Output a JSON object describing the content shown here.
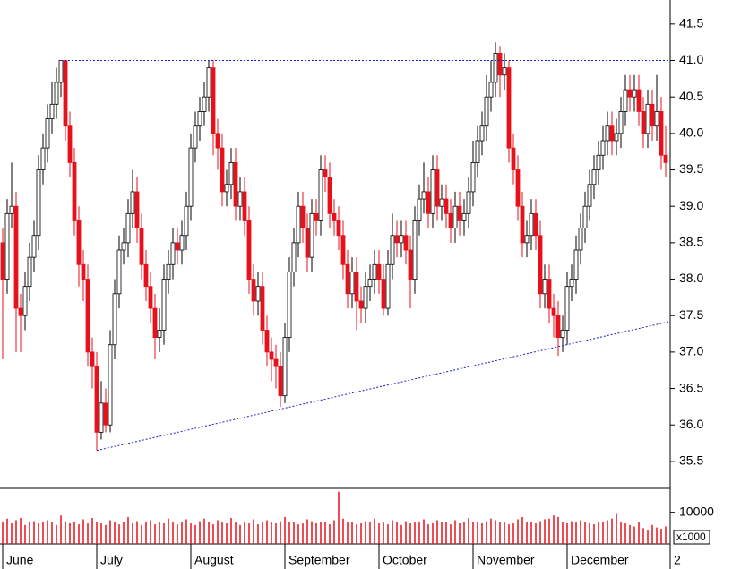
{
  "chart_data": {
    "type": "candlestick",
    "xlim": [
      -0.6,
      149
    ],
    "xticks": [
      {
        "value": 0,
        "label": "June"
      },
      {
        "value": 21,
        "label": "July"
      },
      {
        "value": 42,
        "label": "August"
      },
      {
        "value": 63,
        "label": "September"
      },
      {
        "value": 84,
        "label": "October"
      },
      {
        "value": 105,
        "label": "November"
      },
      {
        "value": 126,
        "label": "December"
      },
      {
        "value": 149,
        "label": "2"
      }
    ],
    "ylim": [
      35.13,
      41.83
    ],
    "yticks": [
      35.5,
      {
        "value": 36,
        "label": "36.0"
      },
      36.5,
      {
        "value": 37,
        "label": "37.0"
      },
      37.5,
      {
        "value": 38,
        "label": "38.0"
      },
      38.5,
      {
        "value": 39,
        "label": "39.0"
      },
      39.5,
      {
        "value": 40,
        "label": "40.0"
      },
      40.5,
      {
        "value": 41,
        "label": "41.0"
      },
      41.5
    ],
    "up_color": "#ffffff",
    "down_color": "#e8101a",
    "open": [
      38.5,
      38.0,
      38.9,
      39.0,
      37.6,
      37.5,
      37.9,
      38.3,
      38.6,
      39.5,
      39.8,
      40.2,
      40.4,
      40.7,
      41.0,
      40.1,
      39.6,
      38.8,
      38.2,
      38.0,
      37.0,
      36.8,
      35.9,
      36.3,
      36.0,
      37.1,
      37.8,
      38.4,
      38.5,
      38.9,
      39.2,
      38.7,
      38.2,
      37.9,
      37.6,
      37.2,
      37.3,
      38.0,
      38.2,
      38.5,
      38.4,
      38.6,
      39.0,
      39.8,
      40.1,
      40.3,
      40.5,
      40.9,
      40.0,
      39.8,
      39.2,
      39.3,
      39.6,
      39.0,
      39.2,
      38.8,
      38.0,
      37.7,
      37.9,
      37.3,
      37.0,
      36.9,
      36.8,
      36.4,
      37.2,
      38.1,
      38.5,
      39.0,
      38.7,
      38.3,
      38.9,
      38.8,
      39.5,
      39.4,
      38.9,
      38.8,
      38.6,
      38.2,
      37.8,
      38.1,
      37.7,
      37.6,
      37.9,
      38.0,
      38.2,
      38.0,
      37.6,
      38.2,
      38.6,
      38.5,
      38.6,
      38.4,
      38.0,
      38.8,
      39.1,
      39.2,
      38.9,
      39.5,
      39.0,
      39.1,
      38.9,
      38.7,
      39.0,
      38.8,
      38.9,
      39.2,
      39.6,
      39.9,
      40.1,
      40.5,
      40.7,
      41.1,
      40.8,
      40.9,
      39.8,
      39.5,
      39.0,
      38.5,
      38.6,
      38.9,
      38.6,
      37.8,
      38.0,
      37.6,
      37.5,
      37.2,
      37.3,
      37.9,
      38.0,
      38.4,
      38.7,
      39.0,
      39.3,
      39.5,
      39.7,
      39.9,
      40.1,
      39.9,
      40.0,
      40.3,
      40.6,
      40.5,
      40.6,
      40.3,
      40.0,
      40.4,
      40.1,
      40.3,
      39.7
    ],
    "high": [
      38.7,
      39.1,
      39.6,
      39.2,
      37.8,
      38.1,
      38.5,
      38.8,
      39.7,
      40.0,
      40.4,
      40.7,
      40.9,
      41.0,
      41.0,
      40.3,
      39.8,
      39.0,
      38.4,
      38.2,
      37.2,
      37.0,
      36.6,
      36.5,
      37.3,
      38.0,
      38.6,
      38.7,
      39.1,
      39.5,
      39.4,
      38.9,
      38.4,
      38.1,
      37.8,
      37.6,
      38.2,
      38.4,
      38.7,
      38.7,
      38.8,
      39.2,
      40.0,
      40.3,
      40.5,
      40.7,
      41.0,
      41.0,
      40.2,
      40.0,
      39.5,
      39.8,
      39.8,
      39.4,
      39.4,
      39.0,
      38.2,
      38.1,
      38.1,
      37.5,
      37.2,
      37.1,
      37.0,
      37.4,
      38.3,
      38.7,
      39.2,
      39.2,
      38.9,
      39.1,
      39.1,
      39.7,
      39.7,
      39.6,
      39.1,
      39.0,
      38.8,
      38.4,
      38.3,
      38.3,
      37.9,
      38.1,
      38.2,
      38.4,
      38.4,
      38.2,
      38.4,
      38.9,
      38.8,
      38.8,
      38.8,
      38.6,
      39.0,
      39.3,
      39.6,
      39.4,
      39.7,
      39.7,
      39.3,
      39.3,
      39.1,
      39.2,
      39.2,
      39.1,
      39.4,
      39.9,
      40.1,
      40.3,
      40.8,
      41.0,
      41.25,
      41.2,
      41.1,
      41.0,
      40.0,
      39.7,
      39.2,
      38.8,
      39.1,
      39.1,
      38.8,
      38.2,
      38.2,
      37.8,
      37.7,
      37.5,
      38.1,
      38.2,
      38.6,
      38.9,
      39.2,
      39.5,
      39.7,
      39.9,
      40.1,
      40.3,
      40.3,
      40.2,
      40.5,
      40.8,
      40.8,
      40.8,
      40.8,
      40.5,
      40.6,
      40.6,
      40.8,
      40.5,
      40.1
    ],
    "low": [
      36.9,
      37.8,
      38.7,
      37.0,
      37.0,
      37.3,
      37.7,
      38.1,
      38.4,
      39.3,
      39.6,
      40.0,
      40.2,
      40.5,
      39.9,
      39.4,
      38.6,
      37.9,
      37.7,
      36.8,
      36.5,
      35.65,
      35.8,
      35.9,
      35.9,
      36.9,
      37.6,
      38.2,
      38.3,
      38.7,
      38.5,
      38.0,
      37.7,
      37.4,
      36.9,
      37.0,
      37.1,
      37.8,
      38.0,
      38.2,
      38.2,
      38.4,
      38.8,
      39.6,
      39.9,
      40.1,
      40.3,
      39.7,
      39.5,
      39.0,
      39.0,
      39.1,
      38.8,
      38.8,
      38.6,
      37.8,
      37.5,
      37.5,
      37.1,
      36.8,
      36.6,
      36.5,
      36.25,
      36.3,
      37.0,
      37.9,
      38.3,
      38.5,
      38.1,
      38.1,
      38.6,
      38.6,
      39.2,
      38.7,
      38.6,
      38.4,
      38.0,
      37.6,
      37.6,
      37.3,
      37.4,
      37.4,
      37.7,
      37.8,
      37.8,
      37.5,
      37.5,
      38.0,
      38.3,
      38.3,
      38.2,
      37.6,
      37.8,
      38.6,
      38.9,
      38.7,
      38.7,
      38.8,
      38.8,
      38.7,
      38.5,
      38.5,
      38.6,
      38.6,
      38.7,
      39.0,
      39.4,
      39.7,
      39.9,
      40.3,
      40.5,
      40.5,
      40.6,
      39.6,
      39.3,
      38.8,
      38.3,
      38.3,
      38.4,
      38.4,
      37.6,
      37.6,
      37.4,
      37.2,
      36.95,
      37.0,
      37.1,
      37.7,
      37.8,
      38.2,
      38.5,
      38.8,
      39.1,
      39.3,
      39.5,
      39.7,
      39.7,
      39.7,
      39.8,
      40.1,
      40.3,
      40.3,
      40.1,
      39.8,
      39.8,
      39.9,
      39.9,
      39.5,
      39.4
    ],
    "close": [
      38.0,
      38.9,
      39.0,
      37.6,
      37.5,
      37.9,
      38.3,
      38.6,
      39.5,
      39.8,
      40.2,
      40.4,
      40.7,
      41.0,
      40.1,
      39.6,
      38.8,
      38.2,
      38.0,
      37.0,
      36.8,
      35.9,
      36.3,
      36.0,
      37.1,
      37.8,
      38.4,
      38.5,
      38.9,
      39.2,
      38.7,
      38.2,
      37.9,
      37.6,
      37.2,
      37.3,
      38.0,
      38.2,
      38.5,
      38.4,
      38.6,
      39.0,
      39.8,
      40.1,
      40.3,
      40.5,
      40.9,
      40.0,
      39.8,
      39.2,
      39.3,
      39.6,
      39.0,
      39.2,
      38.8,
      38.0,
      37.7,
      37.9,
      37.3,
      37.0,
      36.9,
      36.8,
      36.4,
      37.2,
      38.1,
      38.5,
      39.0,
      38.7,
      38.3,
      38.9,
      38.8,
      39.5,
      39.4,
      38.9,
      38.8,
      38.6,
      38.2,
      37.8,
      38.1,
      37.7,
      37.6,
      37.9,
      38.0,
      38.2,
      38.0,
      37.6,
      38.2,
      38.6,
      38.5,
      38.6,
      38.4,
      38.0,
      38.8,
      39.1,
      39.2,
      38.9,
      39.5,
      39.0,
      39.1,
      38.9,
      38.7,
      39.0,
      38.8,
      38.9,
      39.2,
      39.6,
      39.9,
      40.1,
      40.5,
      40.7,
      41.1,
      40.8,
      40.9,
      39.8,
      39.5,
      39.0,
      38.5,
      38.6,
      38.9,
      38.6,
      37.8,
      38.0,
      37.6,
      37.5,
      37.2,
      37.3,
      37.9,
      38.0,
      38.4,
      38.7,
      39.0,
      39.3,
      39.5,
      39.7,
      39.9,
      40.1,
      39.9,
      40.0,
      40.3,
      40.6,
      40.5,
      40.6,
      40.3,
      40.0,
      40.4,
      40.1,
      40.3,
      39.7,
      39.6
    ],
    "volume": {
      "color": "#e8101a",
      "ylim": [
        0,
        16700
      ],
      "yticks": [
        10000
      ],
      "unit_label": "x1000",
      "values": [
        7000,
        8000,
        6500,
        7500,
        8200,
        6000,
        6800,
        7200,
        6500,
        7000,
        7500,
        6800,
        6000,
        9000,
        7200,
        6500,
        7000,
        6200,
        7800,
        6500,
        8200,
        7000,
        6500,
        6000,
        7500,
        6800,
        6200,
        7000,
        8500,
        6500,
        7200,
        6000,
        6800,
        7500,
        6200,
        7000,
        6500,
        8000,
        6800,
        6200,
        7000,
        7800,
        6500,
        6000,
        7200,
        8000,
        6800,
        6200,
        7500,
        7000,
        6500,
        8200,
        6800,
        6000,
        7000,
        6500,
        7800,
        6200,
        6800,
        7500,
        7000,
        6500,
        7200,
        8500,
        6800,
        7000,
        6200,
        6500,
        7800,
        7200,
        6500,
        7000,
        6800,
        6200,
        7500,
        16500,
        8000,
        6800,
        7000,
        6200,
        6500,
        7200,
        6800,
        8000,
        6500,
        7000,
        6200,
        7500,
        6800,
        6000,
        7200,
        6500,
        7000,
        6800,
        7800,
        6200,
        6500,
        7500,
        7000,
        6800,
        6200,
        7500,
        6500,
        7000,
        8200,
        6800,
        7000,
        6500,
        7200,
        8000,
        7500,
        6800,
        7000,
        6200,
        6500,
        7800,
        8500,
        6800,
        7000,
        6500,
        7200,
        7800,
        8000,
        9000,
        8500,
        7000,
        6500,
        7200,
        6800,
        7500,
        7000,
        6500,
        6200,
        7000,
        6800,
        7500,
        8000,
        9500,
        7000,
        6500,
        6000,
        5500,
        6800,
        5000,
        4500,
        6000,
        5200,
        4800,
        5500
      ]
    },
    "trend_lines": [
      {
        "color": "#2020c8",
        "x": [
          13,
          149
        ],
        "y": [
          41.0,
          41.0
        ]
      },
      {
        "color": "#2020c8",
        "x": [
          21,
          149
        ],
        "y": [
          35.65,
          37.42
        ]
      }
    ]
  }
}
